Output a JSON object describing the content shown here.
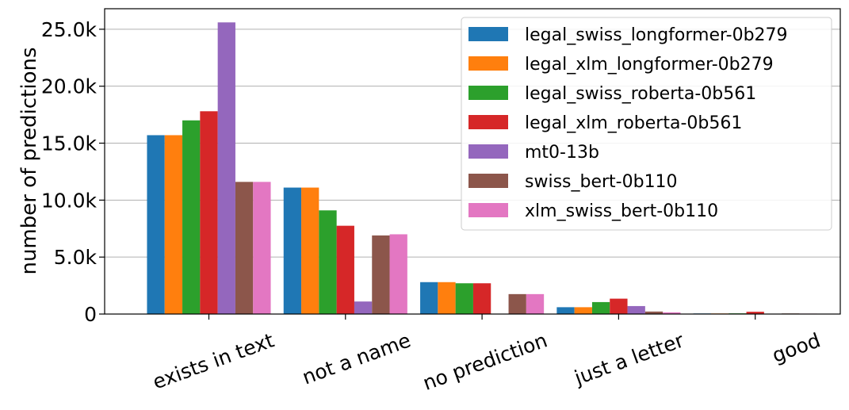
{
  "chart_data": {
    "type": "bar",
    "title": "",
    "xlabel": "",
    "ylabel": "number of predictions",
    "ylim": [
      0,
      26800
    ],
    "y_ticks": [
      0,
      5000,
      10000,
      15000,
      20000,
      25000
    ],
    "y_tick_labels": [
      "0",
      "5.0k",
      "10.0k",
      "15.0k",
      "20.0k",
      "25.0k"
    ],
    "grid": "horizontal",
    "legend_position": "top-right",
    "categories": [
      "exists in text",
      "not a name",
      "no prediction",
      "just a letter",
      "good"
    ],
    "series": [
      {
        "name": "legal_swiss_longformer-0b279",
        "color": "#1f77b4",
        "values": [
          15700,
          11100,
          2800,
          600,
          50
        ]
      },
      {
        "name": "legal_xlm_longformer-0b279",
        "color": "#ff7f0e",
        "values": [
          15700,
          11100,
          2800,
          600,
          50
        ]
      },
      {
        "name": "legal_swiss_roberta-0b561",
        "color": "#2ca02c",
        "values": [
          17000,
          9100,
          2700,
          1050,
          60
        ]
      },
      {
        "name": "legal_xlm_roberta-0b561",
        "color": "#d62728",
        "values": [
          17800,
          7750,
          2700,
          1350,
          200
        ]
      },
      {
        "name": "mt0-13b",
        "color": "#9467bd",
        "values": [
          25600,
          1100,
          0,
          700,
          0
        ]
      },
      {
        "name": "swiss_bert-0b110",
        "color": "#8c564b",
        "values": [
          11600,
          6900,
          1750,
          220,
          50
        ]
      },
      {
        "name": "xlm_swiss_bert-0b110",
        "color": "#e377c2",
        "values": [
          11600,
          7000,
          1750,
          150,
          40
        ]
      }
    ]
  }
}
